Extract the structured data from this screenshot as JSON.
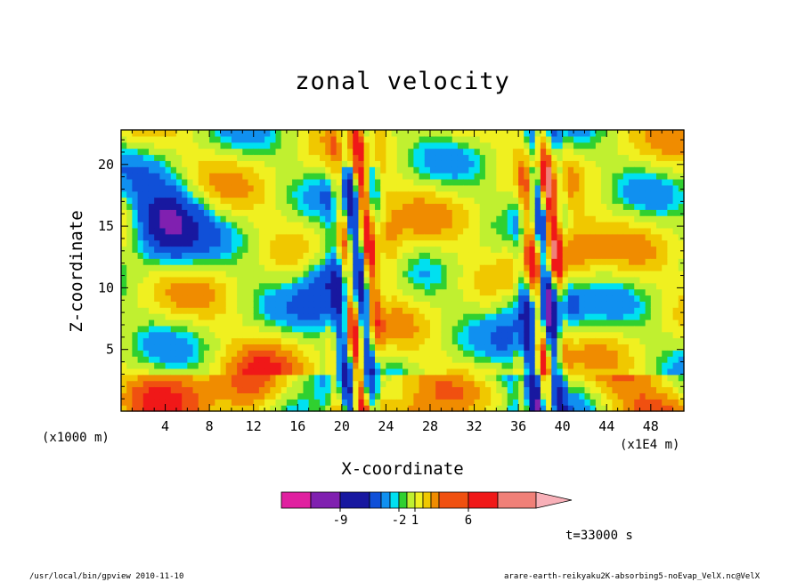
{
  "chart_data": {
    "type": "heatmap",
    "title": "zonal velocity",
    "xlabel": "X-coordinate",
    "ylabel": "Z-coordinate",
    "x_unit_note": "(x1000 m)",
    "x_scale_note": "(x1E4 m)",
    "time_label": "t=33000 s",
    "xlim": [
      0,
      51
    ],
    "ylim": [
      0,
      22.8
    ],
    "x_ticks": [
      4,
      8,
      12,
      16,
      20,
      24,
      28,
      32,
      36,
      40,
      44,
      48
    ],
    "y_ticks": [
      5,
      10,
      15,
      20
    ],
    "colorbar": {
      "colors": [
        "#e020a0",
        "#8020b0",
        "#1818a0",
        "#1050d8",
        "#1090f0",
        "#00e0f0",
        "#30d030",
        "#c0f030",
        "#f0f020",
        "#f0c800",
        "#f08c00",
        "#f05010",
        "#f01818",
        "#f08078",
        "#f8b0b8"
      ],
      "tick_labels": [
        "-9",
        "-2",
        "1",
        "6"
      ]
    },
    "features": [
      {
        "x": 20,
        "z": 11,
        "value": -8
      },
      {
        "x": 22.5,
        "z": 12,
        "value": 6
      },
      {
        "x": 4,
        "z": 15.5,
        "value": -7
      },
      {
        "x": 38,
        "z": 9,
        "value": -7
      },
      {
        "x": 39,
        "z": 12.5,
        "value": 6
      },
      {
        "x": 12,
        "z": 1,
        "value": 5
      }
    ]
  },
  "footer": {
    "left": "/usr/local/bin/gpview  2010-11-10",
    "right": "arare-earth-reikyaku2K-absorbing5-noEvap_VelX.nc@VelX"
  }
}
